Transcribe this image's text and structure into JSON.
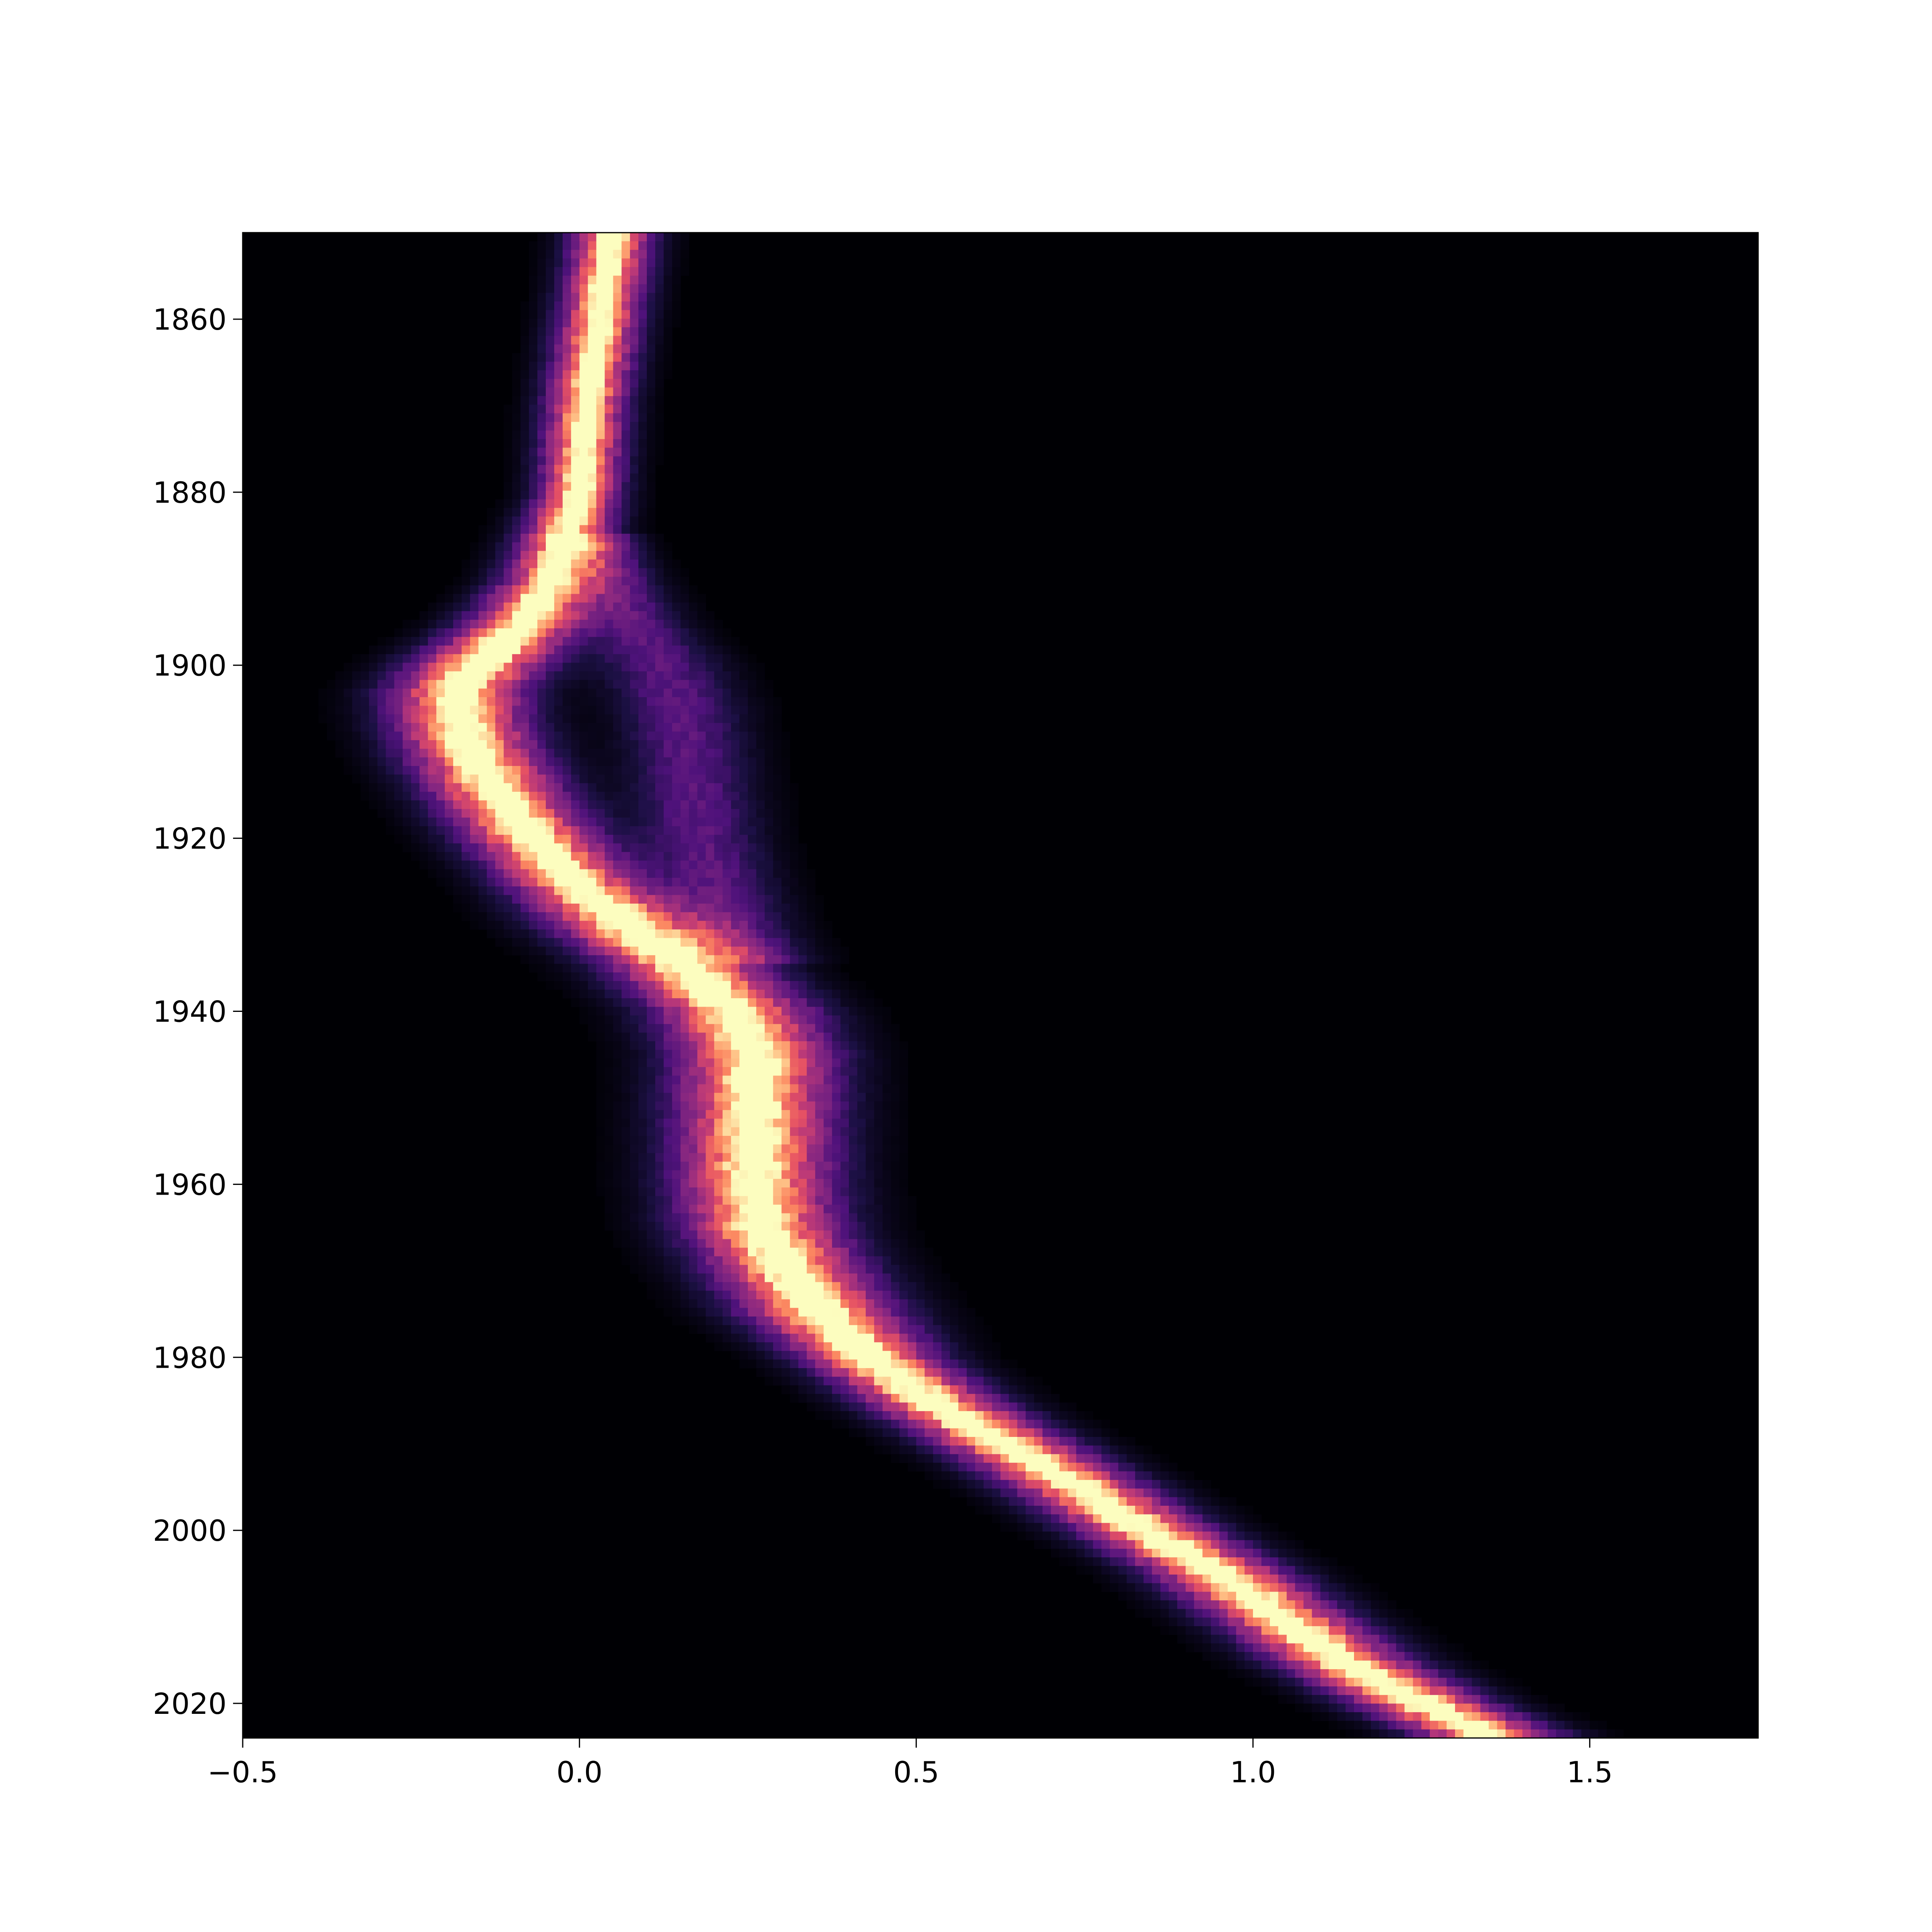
{
  "chart_data": {
    "type": "heatmap",
    "title": "",
    "xlabel": "",
    "ylabel": "",
    "xlim": [
      -0.5,
      1.75
    ],
    "ylim": [
      1850,
      2024
    ],
    "y_inverted": true,
    "colormap": "magma",
    "grid": false,
    "legend": "none",
    "x_ticks": [
      {
        "value": -0.5,
        "label": "−0.5"
      },
      {
        "value": 0.0,
        "label": "0.0"
      },
      {
        "value": 0.5,
        "label": "0.5"
      },
      {
        "value": 1.0,
        "label": "1.0"
      },
      {
        "value": 1.5,
        "label": "1.5"
      }
    ],
    "y_ticks": [
      {
        "value": 1860,
        "label": "1860"
      },
      {
        "value": 1880,
        "label": "1880"
      },
      {
        "value": 1900,
        "label": "1900"
      },
      {
        "value": 1920,
        "label": "1920"
      },
      {
        "value": 1940,
        "label": "1940"
      },
      {
        "value": 1960,
        "label": "1960"
      },
      {
        "value": 1980,
        "label": "1980"
      },
      {
        "value": 2000,
        "label": "2000"
      },
      {
        "value": 2020,
        "label": "2020"
      }
    ],
    "trend": {
      "years": [
        1850,
        1860,
        1870,
        1880,
        1890,
        1895,
        1900,
        1903,
        1906,
        1910,
        1915,
        1920,
        1925,
        1930,
        1935,
        1940,
        1945,
        1950,
        1955,
        1960,
        1965,
        1970,
        1975,
        1980,
        1985,
        1990,
        1995,
        2000,
        2005,
        2010,
        2015,
        2020,
        2024
      ],
      "center": [
        0.05,
        0.03,
        0.01,
        0.0,
        -0.04,
        -0.08,
        -0.15,
        -0.18,
        -0.18,
        -0.16,
        -0.12,
        -0.07,
        -0.01,
        0.07,
        0.16,
        0.23,
        0.26,
        0.26,
        0.26,
        0.26,
        0.27,
        0.31,
        0.36,
        0.43,
        0.52,
        0.63,
        0.74,
        0.84,
        0.95,
        1.04,
        1.13,
        1.25,
        1.36
      ],
      "spread": [
        0.04,
        0.04,
        0.04,
        0.04,
        0.05,
        0.06,
        0.07,
        0.07,
        0.07,
        0.07,
        0.07,
        0.07,
        0.07,
        0.08,
        0.08,
        0.08,
        0.08,
        0.08,
        0.08,
        0.08,
        0.08,
        0.08,
        0.08,
        0.07,
        0.07,
        0.07,
        0.07,
        0.07,
        0.07,
        0.07,
        0.07,
        0.07,
        0.07
      ]
    },
    "secondary_branch": {
      "years": [
        1885,
        1895,
        1900,
        1905,
        1910,
        1915,
        1920,
        1925,
        1930,
        1935
      ],
      "center": [
        0.02,
        0.08,
        0.12,
        0.15,
        0.16,
        0.17,
        0.18,
        0.2,
        0.22,
        0.25
      ],
      "spread": [
        0.04,
        0.05,
        0.06,
        0.06,
        0.06,
        0.06,
        0.06,
        0.06,
        0.06,
        0.06
      ],
      "weight": 0.35
    }
  }
}
